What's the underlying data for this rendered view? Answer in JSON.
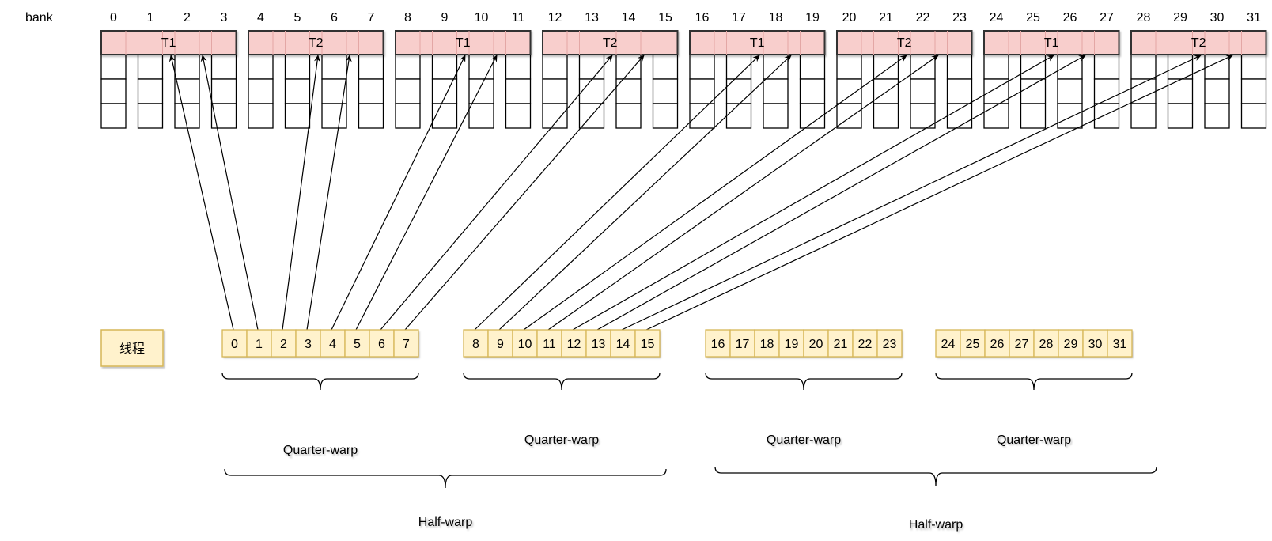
{
  "bank_label": "bank",
  "banks": [
    "0",
    "1",
    "2",
    "3",
    "4",
    "5",
    "6",
    "7",
    "8",
    "9",
    "10",
    "11",
    "12",
    "13",
    "14",
    "15",
    "16",
    "17",
    "18",
    "19",
    "20",
    "21",
    "22",
    "23",
    "24",
    "25",
    "26",
    "27",
    "28",
    "29",
    "30",
    "31"
  ],
  "groups": [
    {
      "label": "T1"
    },
    {
      "label": "T2"
    },
    {
      "label": "T1"
    },
    {
      "label": "T2"
    },
    {
      "label": "T1"
    },
    {
      "label": "T2"
    },
    {
      "label": "T1"
    },
    {
      "label": "T2"
    }
  ],
  "thread_label": "线程",
  "threads": [
    "0",
    "1",
    "2",
    "3",
    "4",
    "5",
    "6",
    "7",
    "8",
    "9",
    "10",
    "11",
    "12",
    "13",
    "14",
    "15",
    "16",
    "17",
    "18",
    "19",
    "20",
    "21",
    "22",
    "23",
    "24",
    "25",
    "26",
    "27",
    "28",
    "29",
    "30",
    "31"
  ],
  "quarter_label": "Quarter-warp",
  "half_label": "Half-warp",
  "colors": {
    "group_fill": "#f8cecc",
    "group_stroke": "#333333",
    "thread_fill": "#fff2cc",
    "thread_stroke": "#d6b656",
    "line": "#000000"
  }
}
